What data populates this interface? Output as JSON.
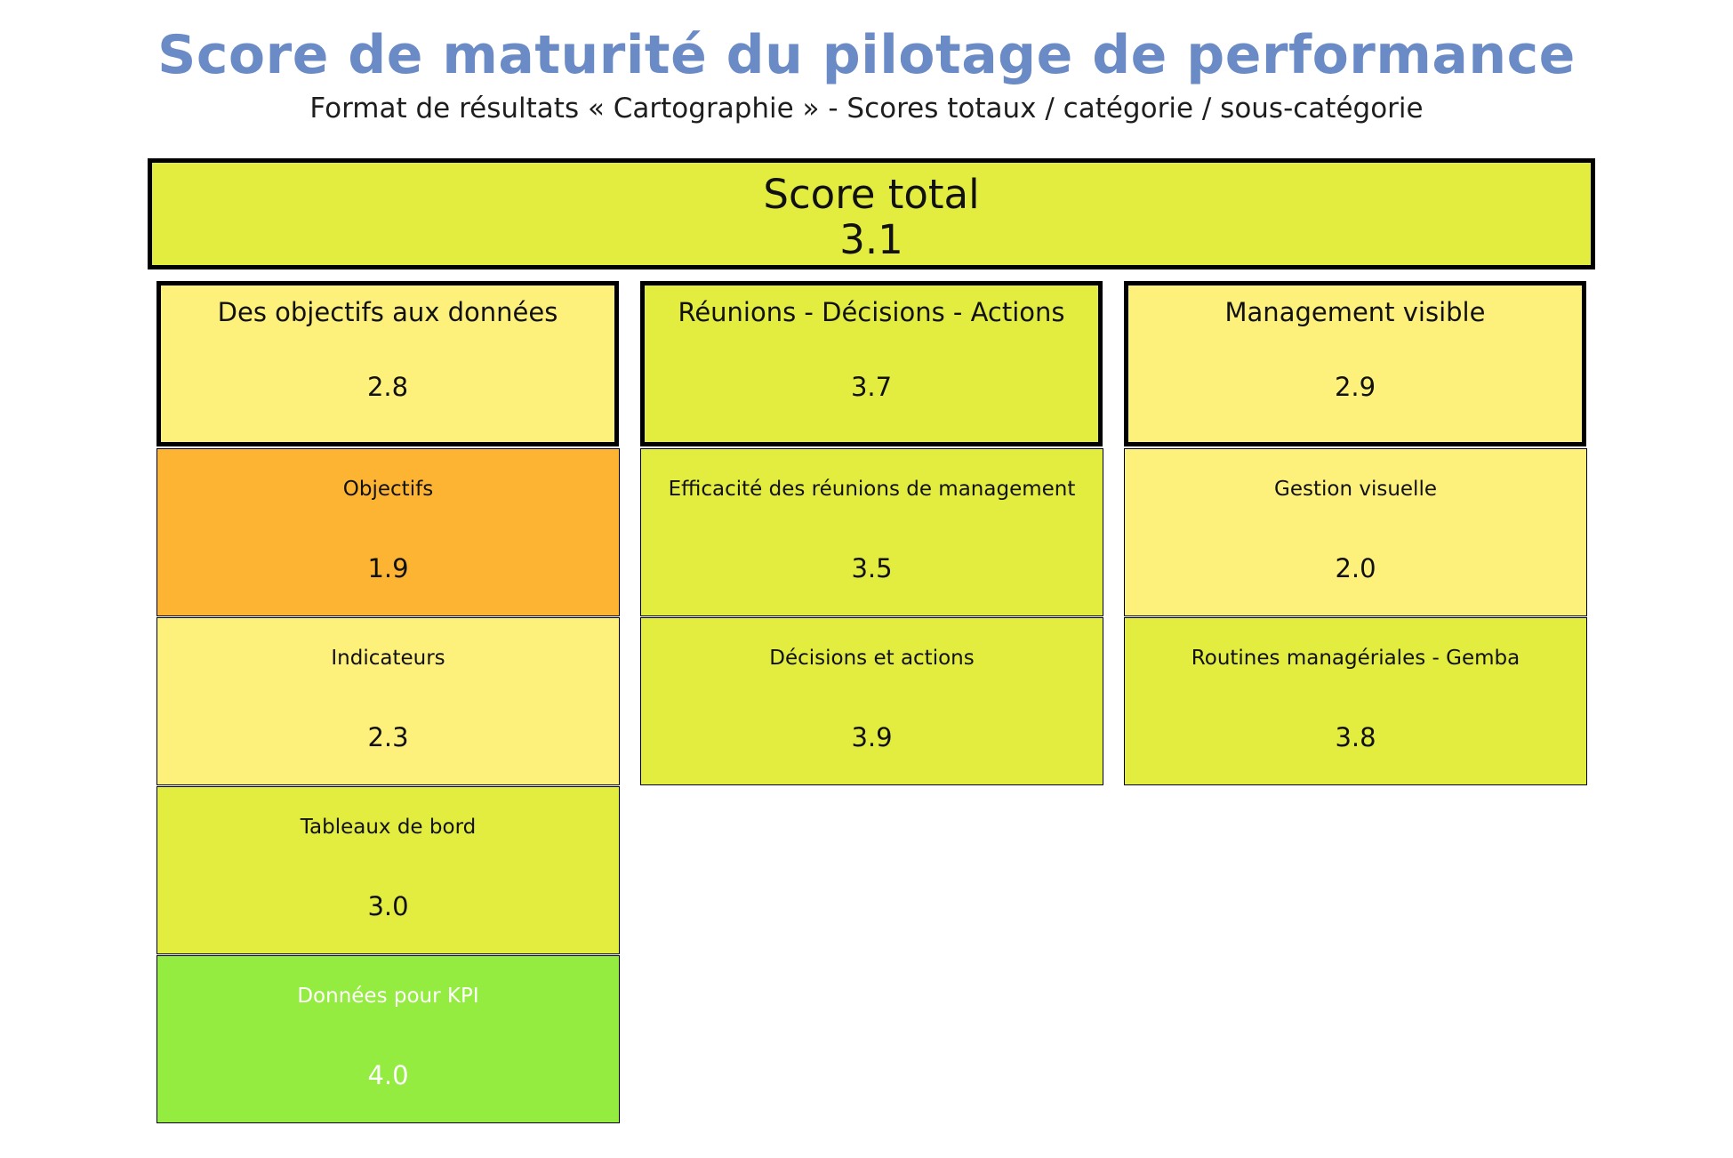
{
  "header": {
    "title": "Score de maturité du pilotage de performance",
    "subtitle": "Format de résultats « Cartographie » - Scores totaux / catégorie / sous-catégorie"
  },
  "colors": {
    "title": "#6a8bc6",
    "score_orange": "#fdb433",
    "score_light_yellow": "#fdf07b",
    "score_yellow_green": "#e3ed40",
    "score_green": "#93ec3f"
  },
  "total": {
    "label": "Score total",
    "value": "3.1",
    "color": "#e3ed40"
  },
  "categories": [
    {
      "label": "Des objectifs aux données",
      "value": "2.8",
      "color": "#fdf07b",
      "subcategories": [
        {
          "label": "Objectifs",
          "value": "1.9",
          "color": "#fdb433"
        },
        {
          "label": "Indicateurs",
          "value": "2.3",
          "color": "#fdf07b"
        },
        {
          "label": "Tableaux de bord",
          "value": "3.0",
          "color": "#e3ed40"
        },
        {
          "label": "Données pour KPI",
          "value": "4.0",
          "color": "#93ec3f"
        }
      ]
    },
    {
      "label": "Réunions - Décisions - Actions",
      "value": "3.7",
      "color": "#e3ed40",
      "subcategories": [
        {
          "label": "Efficacité des réunions de management",
          "value": "3.5",
          "color": "#e3ed40"
        },
        {
          "label": "Décisions et actions",
          "value": "3.9",
          "color": "#e3ed40"
        }
      ]
    },
    {
      "label": "Management visible",
      "value": "2.9",
      "color": "#fdf07b",
      "subcategories": [
        {
          "label": "Gestion visuelle",
          "value": "2.0",
          "color": "#fdf07b"
        },
        {
          "label": "Routines managériales - Gemba",
          "value": "3.8",
          "color": "#e3ed40"
        }
      ]
    }
  ]
}
